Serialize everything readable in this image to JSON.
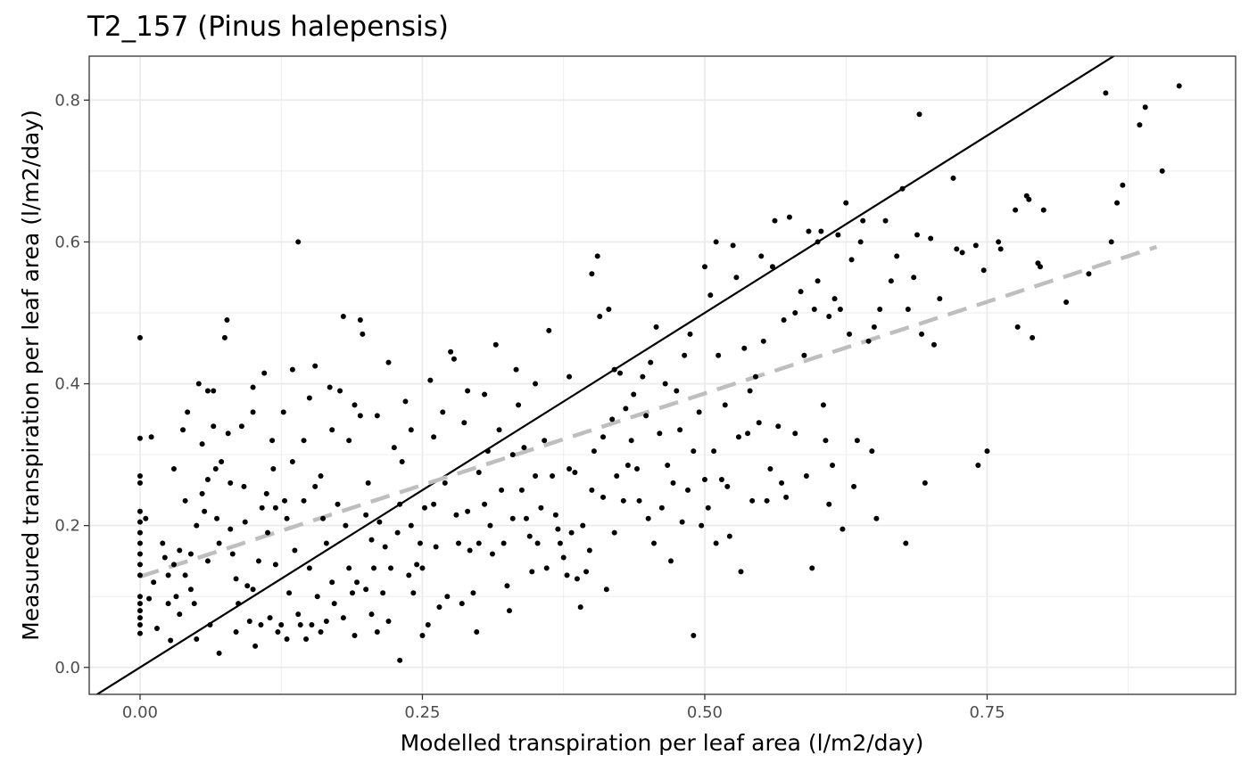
{
  "chart_data": {
    "type": "scatter",
    "title": "T2_157 (Pinus halepensis)",
    "xlabel": "Modelled transpiration per leaf area (l/m2/day)",
    "ylabel": "Measured transpiration per leaf area (l/m2/day)",
    "xlim": [
      -0.045,
      0.97
    ],
    "ylim": [
      -0.038,
      0.862
    ],
    "x_ticks": [
      0.0,
      0.25,
      0.5,
      0.75
    ],
    "x_tick_labels": [
      "0.00",
      "0.25",
      "0.50",
      "0.75"
    ],
    "y_ticks": [
      0.0,
      0.2,
      0.4,
      0.6,
      0.8
    ],
    "y_tick_labels": [
      "0.0",
      "0.2",
      "0.4",
      "0.6",
      "0.8"
    ],
    "grid": true,
    "legend": "none",
    "colors": {
      "points": "#000000",
      "identity_line": "#000000",
      "fit_line": "#bebebe",
      "panel_border": "#333333",
      "grid": "#ebebeb"
    },
    "reference_lines": [
      {
        "kind": "identity",
        "style": "solid",
        "slope": 1.0,
        "intercept": 0.0
      },
      {
        "kind": "linear-fit",
        "style": "dashed",
        "x": [
          0.0,
          0.9
        ],
        "y": [
          0.128,
          0.593
        ]
      }
    ],
    "points": [
      [
        0.0,
        0.465
      ],
      [
        0.0,
        0.323
      ],
      [
        0.0,
        0.27
      ],
      [
        0.0,
        0.26
      ],
      [
        0.0,
        0.22
      ],
      [
        0.0,
        0.205
      ],
      [
        0.0,
        0.19
      ],
      [
        0.0,
        0.175
      ],
      [
        0.0,
        0.16
      ],
      [
        0.0,
        0.145
      ],
      [
        0.0,
        0.13
      ],
      [
        0.0,
        0.1
      ],
      [
        0.0,
        0.09
      ],
      [
        0.0,
        0.08
      ],
      [
        0.0,
        0.07
      ],
      [
        0.0,
        0.06
      ],
      [
        0.0,
        0.048
      ],
      [
        0.005,
        0.21
      ],
      [
        0.008,
        0.097
      ],
      [
        0.01,
        0.325
      ],
      [
        0.012,
        0.12
      ],
      [
        0.015,
        0.055
      ],
      [
        0.02,
        0.175
      ],
      [
        0.022,
        0.155
      ],
      [
        0.025,
        0.13
      ],
      [
        0.025,
        0.09
      ],
      [
        0.027,
        0.038
      ],
      [
        0.03,
        0.28
      ],
      [
        0.03,
        0.145
      ],
      [
        0.032,
        0.1
      ],
      [
        0.035,
        0.165
      ],
      [
        0.035,
        0.075
      ],
      [
        0.038,
        0.335
      ],
      [
        0.04,
        0.235
      ],
      [
        0.04,
        0.13
      ],
      [
        0.042,
        0.36
      ],
      [
        0.045,
        0.16
      ],
      [
        0.045,
        0.11
      ],
      [
        0.048,
        0.09
      ],
      [
        0.05,
        0.2
      ],
      [
        0.05,
        0.04
      ],
      [
        0.052,
        0.4
      ],
      [
        0.055,
        0.315
      ],
      [
        0.055,
        0.245
      ],
      [
        0.057,
        0.22
      ],
      [
        0.06,
        0.39
      ],
      [
        0.06,
        0.265
      ],
      [
        0.06,
        0.15
      ],
      [
        0.062,
        0.06
      ],
      [
        0.065,
        0.39
      ],
      [
        0.065,
        0.34
      ],
      [
        0.067,
        0.28
      ],
      [
        0.068,
        0.21
      ],
      [
        0.07,
        0.175
      ],
      [
        0.07,
        0.02
      ],
      [
        0.072,
        0.29
      ],
      [
        0.075,
        0.465
      ],
      [
        0.077,
        0.49
      ],
      [
        0.078,
        0.33
      ],
      [
        0.08,
        0.26
      ],
      [
        0.08,
        0.195
      ],
      [
        0.082,
        0.16
      ],
      [
        0.085,
        0.125
      ],
      [
        0.085,
        0.05
      ],
      [
        0.087,
        0.09
      ],
      [
        0.09,
        0.34
      ],
      [
        0.092,
        0.255
      ],
      [
        0.093,
        0.205
      ],
      [
        0.095,
        0.115
      ],
      [
        0.097,
        0.065
      ],
      [
        0.1,
        0.395
      ],
      [
        0.1,
        0.36
      ],
      [
        0.1,
        0.11
      ],
      [
        0.102,
        0.03
      ],
      [
        0.105,
        0.15
      ],
      [
        0.107,
        0.06
      ],
      [
        0.108,
        0.225
      ],
      [
        0.11,
        0.415
      ],
      [
        0.112,
        0.245
      ],
      [
        0.113,
        0.19
      ],
      [
        0.115,
        0.07
      ],
      [
        0.117,
        0.32
      ],
      [
        0.118,
        0.28
      ],
      [
        0.12,
        0.225
      ],
      [
        0.12,
        0.145
      ],
      [
        0.122,
        0.05
      ],
      [
        0.125,
        0.06
      ],
      [
        0.127,
        0.36
      ],
      [
        0.128,
        0.235
      ],
      [
        0.13,
        0.21
      ],
      [
        0.13,
        0.04
      ],
      [
        0.132,
        0.105
      ],
      [
        0.135,
        0.42
      ],
      [
        0.135,
        0.29
      ],
      [
        0.137,
        0.165
      ],
      [
        0.14,
        0.6
      ],
      [
        0.14,
        0.075
      ],
      [
        0.142,
        0.06
      ],
      [
        0.145,
        0.32
      ],
      [
        0.145,
        0.235
      ],
      [
        0.147,
        0.04
      ],
      [
        0.15,
        0.38
      ],
      [
        0.15,
        0.14
      ],
      [
        0.152,
        0.06
      ],
      [
        0.155,
        0.425
      ],
      [
        0.155,
        0.255
      ],
      [
        0.157,
        0.1
      ],
      [
        0.16,
        0.27
      ],
      [
        0.16,
        0.05
      ],
      [
        0.162,
        0.21
      ],
      [
        0.165,
        0.175
      ],
      [
        0.165,
        0.065
      ],
      [
        0.168,
        0.395
      ],
      [
        0.17,
        0.335
      ],
      [
        0.17,
        0.12
      ],
      [
        0.172,
        0.09
      ],
      [
        0.175,
        0.23
      ],
      [
        0.177,
        0.39
      ],
      [
        0.18,
        0.495
      ],
      [
        0.18,
        0.07
      ],
      [
        0.182,
        0.2
      ],
      [
        0.185,
        0.32
      ],
      [
        0.185,
        0.14
      ],
      [
        0.188,
        0.105
      ],
      [
        0.19,
        0.37
      ],
      [
        0.19,
        0.045
      ],
      [
        0.192,
        0.12
      ],
      [
        0.195,
        0.355
      ],
      [
        0.195,
        0.49
      ],
      [
        0.197,
        0.47
      ],
      [
        0.2,
        0.215
      ],
      [
        0.2,
        0.11
      ],
      [
        0.202,
        0.26
      ],
      [
        0.205,
        0.18
      ],
      [
        0.205,
        0.075
      ],
      [
        0.207,
        0.14
      ],
      [
        0.21,
        0.355
      ],
      [
        0.21,
        0.05
      ],
      [
        0.212,
        0.205
      ],
      [
        0.215,
        0.105
      ],
      [
        0.217,
        0.17
      ],
      [
        0.22,
        0.43
      ],
      [
        0.22,
        0.065
      ],
      [
        0.222,
        0.14
      ],
      [
        0.225,
        0.31
      ],
      [
        0.228,
        0.19
      ],
      [
        0.23,
        0.23
      ],
      [
        0.23,
        0.01
      ],
      [
        0.232,
        0.29
      ],
      [
        0.235,
        0.375
      ],
      [
        0.238,
        0.13
      ],
      [
        0.24,
        0.335
      ],
      [
        0.24,
        0.2
      ],
      [
        0.242,
        0.105
      ],
      [
        0.245,
        0.145
      ],
      [
        0.248,
        0.175
      ],
      [
        0.25,
        0.14
      ],
      [
        0.25,
        0.045
      ],
      [
        0.252,
        0.225
      ],
      [
        0.255,
        0.06
      ],
      [
        0.257,
        0.405
      ],
      [
        0.26,
        0.325
      ],
      [
        0.26,
        0.23
      ],
      [
        0.262,
        0.17
      ],
      [
        0.265,
        0.085
      ],
      [
        0.268,
        0.36
      ],
      [
        0.27,
        0.26
      ],
      [
        0.272,
        0.1
      ],
      [
        0.275,
        0.445
      ],
      [
        0.278,
        0.435
      ],
      [
        0.28,
        0.215
      ],
      [
        0.282,
        0.175
      ],
      [
        0.285,
        0.09
      ],
      [
        0.287,
        0.345
      ],
      [
        0.29,
        0.39
      ],
      [
        0.29,
        0.22
      ],
      [
        0.292,
        0.165
      ],
      [
        0.295,
        0.105
      ],
      [
        0.298,
        0.05
      ],
      [
        0.3,
        0.275
      ],
      [
        0.3,
        0.175
      ],
      [
        0.305,
        0.385
      ],
      [
        0.305,
        0.23
      ],
      [
        0.308,
        0.305
      ],
      [
        0.31,
        0.2
      ],
      [
        0.312,
        0.16
      ],
      [
        0.315,
        0.455
      ],
      [
        0.318,
        0.335
      ],
      [
        0.32,
        0.25
      ],
      [
        0.322,
        0.175
      ],
      [
        0.325,
        0.115
      ],
      [
        0.327,
        0.08
      ],
      [
        0.33,
        0.3
      ],
      [
        0.33,
        0.21
      ],
      [
        0.333,
        0.42
      ],
      [
        0.335,
        0.37
      ],
      [
        0.338,
        0.25
      ],
      [
        0.34,
        0.31
      ],
      [
        0.342,
        0.21
      ],
      [
        0.345,
        0.185
      ],
      [
        0.347,
        0.135
      ],
      [
        0.35,
        0.4
      ],
      [
        0.35,
        0.27
      ],
      [
        0.352,
        0.175
      ],
      [
        0.355,
        0.225
      ],
      [
        0.358,
        0.32
      ],
      [
        0.36,
        0.14
      ],
      [
        0.362,
        0.475
      ],
      [
        0.365,
        0.27
      ],
      [
        0.368,
        0.215
      ],
      [
        0.37,
        0.195
      ],
      [
        0.372,
        0.175
      ],
      [
        0.375,
        0.155
      ],
      [
        0.378,
        0.13
      ],
      [
        0.38,
        0.41
      ],
      [
        0.38,
        0.28
      ],
      [
        0.382,
        0.19
      ],
      [
        0.385,
        0.275
      ],
      [
        0.387,
        0.125
      ],
      [
        0.39,
        0.085
      ],
      [
        0.392,
        0.2
      ],
      [
        0.395,
        0.135
      ],
      [
        0.398,
        0.165
      ],
      [
        0.4,
        0.25
      ],
      [
        0.4,
        0.555
      ],
      [
        0.402,
        0.305
      ],
      [
        0.405,
        0.58
      ],
      [
        0.407,
        0.495
      ],
      [
        0.41,
        0.325
      ],
      [
        0.41,
        0.24
      ],
      [
        0.413,
        0.11
      ],
      [
        0.415,
        0.505
      ],
      [
        0.418,
        0.35
      ],
      [
        0.42,
        0.42
      ],
      [
        0.42,
        0.19
      ],
      [
        0.422,
        0.27
      ],
      [
        0.425,
        0.415
      ],
      [
        0.428,
        0.235
      ],
      [
        0.43,
        0.365
      ],
      [
        0.432,
        0.285
      ],
      [
        0.435,
        0.32
      ],
      [
        0.437,
        0.385
      ],
      [
        0.44,
        0.28
      ],
      [
        0.442,
        0.235
      ],
      [
        0.445,
        0.41
      ],
      [
        0.448,
        0.355
      ],
      [
        0.45,
        0.21
      ],
      [
        0.452,
        0.43
      ],
      [
        0.455,
        0.175
      ],
      [
        0.457,
        0.48
      ],
      [
        0.46,
        0.33
      ],
      [
        0.462,
        0.225
      ],
      [
        0.465,
        0.4
      ],
      [
        0.467,
        0.285
      ],
      [
        0.47,
        0.15
      ],
      [
        0.472,
        0.26
      ],
      [
        0.475,
        0.39
      ],
      [
        0.478,
        0.335
      ],
      [
        0.48,
        0.205
      ],
      [
        0.482,
        0.44
      ],
      [
        0.485,
        0.25
      ],
      [
        0.487,
        0.47
      ],
      [
        0.49,
        0.305
      ],
      [
        0.49,
        0.045
      ],
      [
        0.495,
        0.36
      ],
      [
        0.497,
        0.2
      ],
      [
        0.5,
        0.265
      ],
      [
        0.5,
        0.565
      ],
      [
        0.503,
        0.225
      ],
      [
        0.505,
        0.525
      ],
      [
        0.508,
        0.305
      ],
      [
        0.51,
        0.6
      ],
      [
        0.51,
        0.175
      ],
      [
        0.512,
        0.44
      ],
      [
        0.515,
        0.265
      ],
      [
        0.518,
        0.37
      ],
      [
        0.52,
        0.255
      ],
      [
        0.522,
        0.185
      ],
      [
        0.525,
        0.595
      ],
      [
        0.528,
        0.55
      ],
      [
        0.53,
        0.325
      ],
      [
        0.532,
        0.135
      ],
      [
        0.535,
        0.45
      ],
      [
        0.538,
        0.33
      ],
      [
        0.54,
        0.39
      ],
      [
        0.542,
        0.235
      ],
      [
        0.545,
        0.41
      ],
      [
        0.548,
        0.345
      ],
      [
        0.55,
        0.58
      ],
      [
        0.552,
        0.46
      ],
      [
        0.555,
        0.235
      ],
      [
        0.558,
        0.28
      ],
      [
        0.56,
        0.565
      ],
      [
        0.562,
        0.63
      ],
      [
        0.565,
        0.34
      ],
      [
        0.568,
        0.26
      ],
      [
        0.57,
        0.49
      ],
      [
        0.572,
        0.24
      ],
      [
        0.575,
        0.635
      ],
      [
        0.58,
        0.33
      ],
      [
        0.58,
        0.5
      ],
      [
        0.585,
        0.53
      ],
      [
        0.588,
        0.44
      ],
      [
        0.59,
        0.27
      ],
      [
        0.592,
        0.615
      ],
      [
        0.595,
        0.14
      ],
      [
        0.597,
        0.505
      ],
      [
        0.6,
        0.6
      ],
      [
        0.6,
        0.545
      ],
      [
        0.603,
        0.615
      ],
      [
        0.605,
        0.37
      ],
      [
        0.607,
        0.32
      ],
      [
        0.61,
        0.495
      ],
      [
        0.61,
        0.23
      ],
      [
        0.613,
        0.285
      ],
      [
        0.615,
        0.52
      ],
      [
        0.618,
        0.61
      ],
      [
        0.62,
        0.505
      ],
      [
        0.622,
        0.195
      ],
      [
        0.625,
        0.655
      ],
      [
        0.628,
        0.47
      ],
      [
        0.63,
        0.575
      ],
      [
        0.632,
        0.255
      ],
      [
        0.635,
        0.32
      ],
      [
        0.638,
        0.6
      ],
      [
        0.64,
        0.63
      ],
      [
        0.645,
        0.46
      ],
      [
        0.648,
        0.305
      ],
      [
        0.65,
        0.48
      ],
      [
        0.652,
        0.21
      ],
      [
        0.655,
        0.505
      ],
      [
        0.66,
        0.63
      ],
      [
        0.665,
        0.545
      ],
      [
        0.67,
        0.58
      ],
      [
        0.675,
        0.675
      ],
      [
        0.678,
        0.175
      ],
      [
        0.68,
        0.505
      ],
      [
        0.685,
        0.55
      ],
      [
        0.688,
        0.61
      ],
      [
        0.69,
        0.78
      ],
      [
        0.692,
        0.47
      ],
      [
        0.695,
        0.26
      ],
      [
        0.7,
        0.605
      ],
      [
        0.703,
        0.455
      ],
      [
        0.708,
        0.52
      ],
      [
        0.72,
        0.69
      ],
      [
        0.723,
        0.59
      ],
      [
        0.728,
        0.585
      ],
      [
        0.74,
        0.595
      ],
      [
        0.742,
        0.285
      ],
      [
        0.747,
        0.56
      ],
      [
        0.75,
        0.305
      ],
      [
        0.76,
        0.6
      ],
      [
        0.762,
        0.59
      ],
      [
        0.775,
        0.645
      ],
      [
        0.777,
        0.48
      ],
      [
        0.785,
        0.665
      ],
      [
        0.787,
        0.66
      ],
      [
        0.79,
        0.465
      ],
      [
        0.795,
        0.57
      ],
      [
        0.797,
        0.565
      ],
      [
        0.8,
        0.645
      ],
      [
        0.82,
        0.515
      ],
      [
        0.84,
        0.555
      ],
      [
        0.855,
        0.81
      ],
      [
        0.86,
        0.6
      ],
      [
        0.865,
        0.655
      ],
      [
        0.87,
        0.68
      ],
      [
        0.885,
        0.765
      ],
      [
        0.89,
        0.79
      ],
      [
        0.905,
        0.7
      ],
      [
        0.92,
        0.82
      ]
    ]
  }
}
